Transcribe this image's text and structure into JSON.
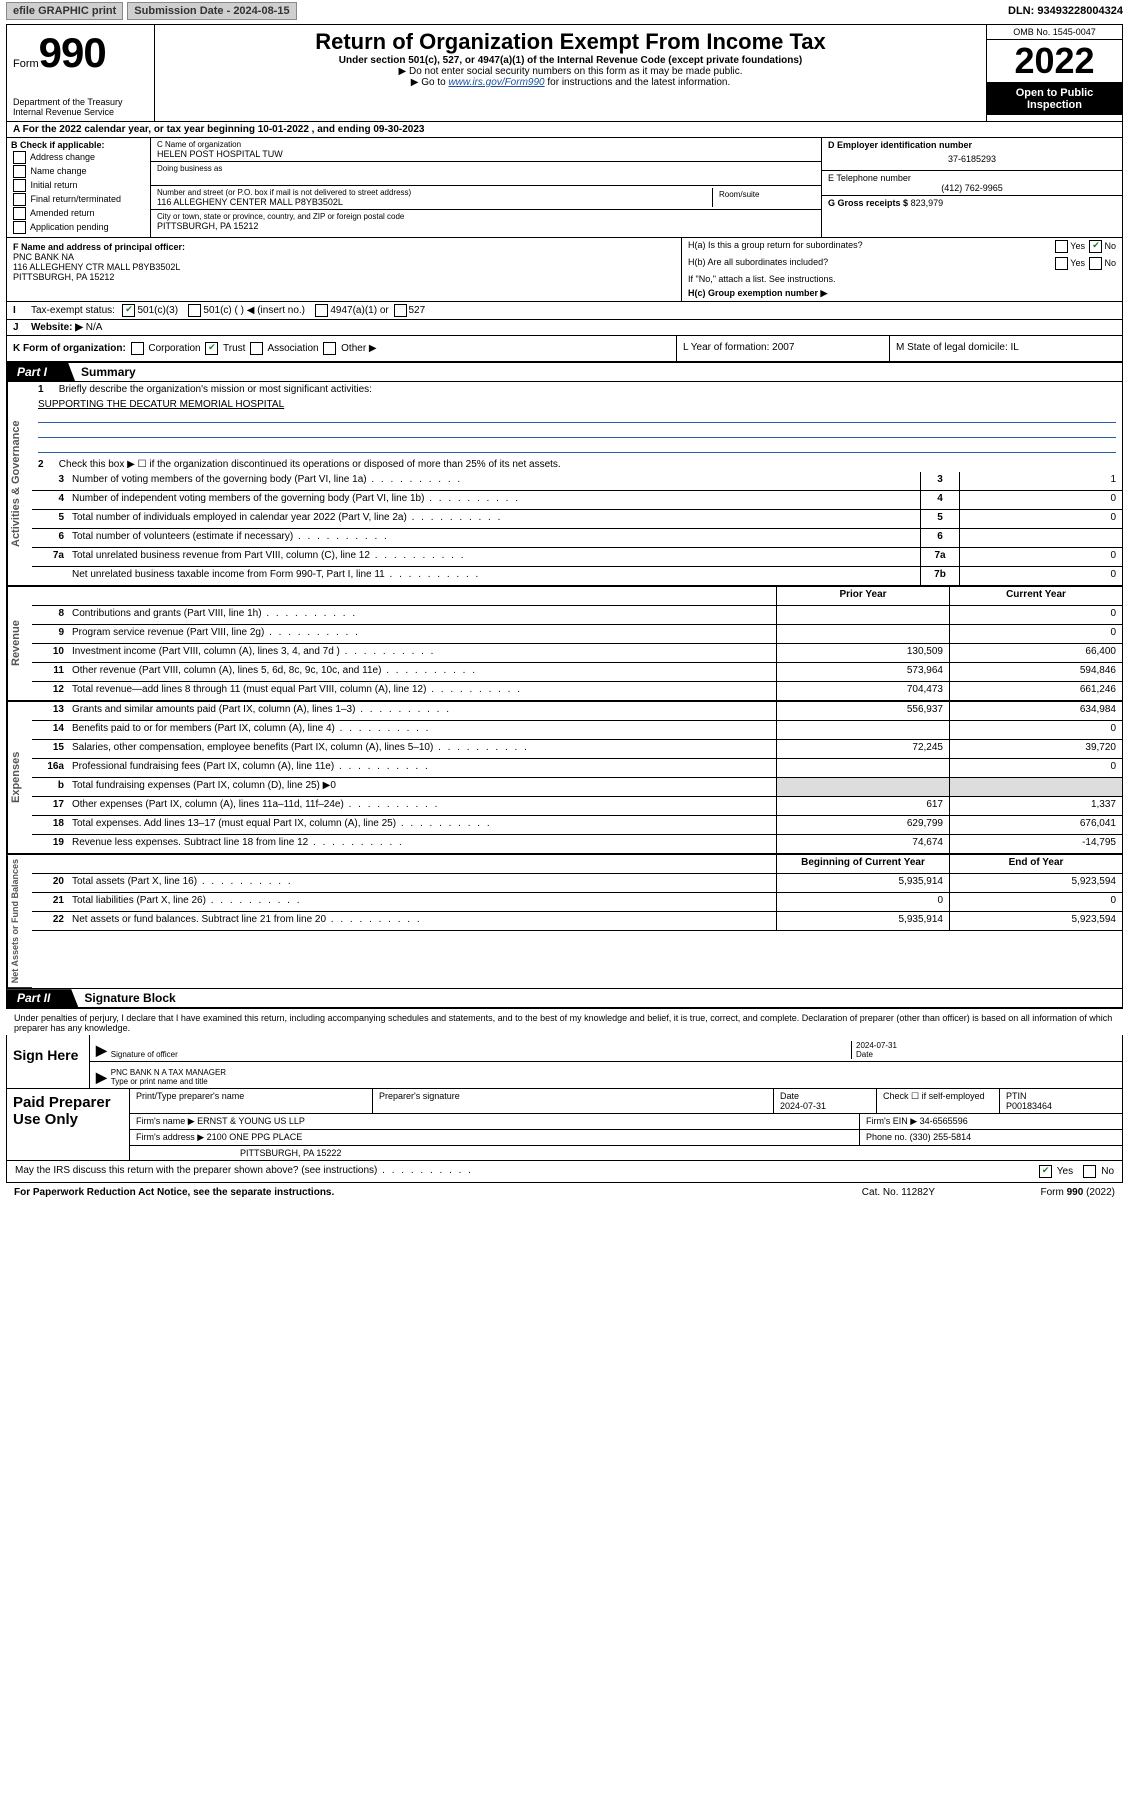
{
  "top": {
    "efile": "efile GRAPHIC print",
    "submission_label": "Submission Date - 2024-08-15",
    "dln": "DLN: 93493228004324"
  },
  "header": {
    "form_prefix": "Form",
    "form_number": "990",
    "title": "Return of Organization Exempt From Income Tax",
    "under": "Under section 501(c), 527, or 4947(a)(1) of the Internal Revenue Code (except private foundations)",
    "ssn": "▶ Do not enter social security numbers on this form as it may be made public.",
    "goto_pre": "▶ Go to ",
    "goto_link": "www.irs.gov/Form990",
    "goto_post": " for instructions and the latest information.",
    "dept": "Department of the Treasury",
    "irs": "Internal Revenue Service",
    "omb": "OMB No. 1545-0047",
    "year": "2022",
    "open": "Open to Public Inspection"
  },
  "rowA": "For the 2022 calendar year, or tax year beginning 10-01-2022    , and ending 09-30-2023",
  "B": {
    "label": "B Check if applicable:",
    "opts": [
      "Address change",
      "Name change",
      "Initial return",
      "Final return/terminated",
      "Amended return",
      "Application pending"
    ]
  },
  "C": {
    "name_lbl": "C Name of organization",
    "name_val": "HELEN POST HOSPITAL TUW",
    "dba_lbl": "Doing business as",
    "street_lbl": "Number and street (or P.O. box if mail is not delivered to street address)",
    "room_lbl": "Room/suite",
    "street_val": "116 ALLEGHENY CENTER MALL P8YB3502L",
    "city_lbl": "City or town, state or province, country, and ZIP or foreign postal code",
    "city_val": "PITTSBURGH, PA  15212"
  },
  "D": {
    "lbl": "D Employer identification number",
    "val": "37-6185293"
  },
  "E": {
    "lbl": "E Telephone number",
    "val": "(412) 762-9965"
  },
  "G": {
    "lbl": "G Gross receipts $",
    "val": "823,979"
  },
  "F": {
    "lbl": "F  Name and address of principal officer:",
    "l1": "PNC BANK NA",
    "l2": "116 ALLEGHENY CTR MALL P8YB3502L",
    "l3": "PITTSBURGH, PA  15212"
  },
  "H": {
    "ha": "H(a)  Is this a group return for subordinates?",
    "hb": "H(b)  Are all subordinates included?",
    "hb_note": "If \"No,\" attach a list. See instructions.",
    "hc": "H(c)  Group exemption number ▶"
  },
  "I": {
    "lbl": "Tax-exempt status:",
    "s1": "501(c)(3)",
    "s2": "501(c) (   ) ◀ (insert no.)",
    "s3": "4947(a)(1) or",
    "s4": "527"
  },
  "J": {
    "lbl": "Website: ▶",
    "val": "N/A"
  },
  "K": {
    "lbl": "K Form of organization:",
    "opts": [
      "Corporation",
      "Trust",
      "Association",
      "Other ▶"
    ],
    "L": "L Year of formation: 2007",
    "M": "M State of legal domicile: IL"
  },
  "part1": {
    "num": "Part I",
    "title": "Summary"
  },
  "gov": {
    "l1": "Briefly describe the organization's mission or most significant activities:",
    "mission": "SUPPORTING THE DECATUR MEMORIAL HOSPITAL",
    "l2": "Check this box ▶ ☐  if the organization discontinued its operations or disposed of more than 25% of its net assets.",
    "rows": [
      {
        "n": "3",
        "d": "Number of voting members of the governing body (Part VI, line 1a)",
        "box": "3",
        "v": "1"
      },
      {
        "n": "4",
        "d": "Number of independent voting members of the governing body (Part VI, line 1b)",
        "box": "4",
        "v": "0"
      },
      {
        "n": "5",
        "d": "Total number of individuals employed in calendar year 2022 (Part V, line 2a)",
        "box": "5",
        "v": "0"
      },
      {
        "n": "6",
        "d": "Total number of volunteers (estimate if necessary)",
        "box": "6",
        "v": ""
      },
      {
        "n": "7a",
        "d": "Total unrelated business revenue from Part VIII, column (C), line 12",
        "box": "7a",
        "v": "0"
      },
      {
        "n": "",
        "d": "Net unrelated business taxable income from Form 990-T, Part I, line 11",
        "box": "7b",
        "v": "0"
      }
    ]
  },
  "twoCol": {
    "hdr_prior": "Prior Year",
    "hdr_curr": "Current Year",
    "rev": [
      {
        "n": "8",
        "d": "Contributions and grants (Part VIII, line 1h)",
        "p": "",
        "c": "0"
      },
      {
        "n": "9",
        "d": "Program service revenue (Part VIII, line 2g)",
        "p": "",
        "c": "0"
      },
      {
        "n": "10",
        "d": "Investment income (Part VIII, column (A), lines 3, 4, and 7d )",
        "p": "130,509",
        "c": "66,400"
      },
      {
        "n": "11",
        "d": "Other revenue (Part VIII, column (A), lines 5, 6d, 8c, 9c, 10c, and 11e)",
        "p": "573,964",
        "c": "594,846"
      },
      {
        "n": "12",
        "d": "Total revenue—add lines 8 through 11 (must equal Part VIII, column (A), line 12)",
        "p": "704,473",
        "c": "661,246"
      }
    ],
    "exp": [
      {
        "n": "13",
        "d": "Grants and similar amounts paid (Part IX, column (A), lines 1–3)",
        "p": "556,937",
        "c": "634,984"
      },
      {
        "n": "14",
        "d": "Benefits paid to or for members (Part IX, column (A), line 4)",
        "p": "",
        "c": "0"
      },
      {
        "n": "15",
        "d": "Salaries, other compensation, employee benefits (Part IX, column (A), lines 5–10)",
        "p": "72,245",
        "c": "39,720"
      },
      {
        "n": "16a",
        "d": "Professional fundraising fees (Part IX, column (A), line 11e)",
        "p": "",
        "c": "0"
      },
      {
        "n": "b",
        "d": "Total fundraising expenses (Part IX, column (D), line 25) ▶0",
        "p": null,
        "c": null
      },
      {
        "n": "17",
        "d": "Other expenses (Part IX, column (A), lines 11a–11d, 11f–24e)",
        "p": "617",
        "c": "1,337"
      },
      {
        "n": "18",
        "d": "Total expenses. Add lines 13–17 (must equal Part IX, column (A), line 25)",
        "p": "629,799",
        "c": "676,041"
      },
      {
        "n": "19",
        "d": "Revenue less expenses. Subtract line 18 from line 12",
        "p": "74,674",
        "c": "-14,795"
      }
    ],
    "hdr_begin": "Beginning of Current Year",
    "hdr_end": "End of Year",
    "net": [
      {
        "n": "20",
        "d": "Total assets (Part X, line 16)",
        "p": "5,935,914",
        "c": "5,923,594"
      },
      {
        "n": "21",
        "d": "Total liabilities (Part X, line 26)",
        "p": "0",
        "c": "0"
      },
      {
        "n": "22",
        "d": "Net assets or fund balances. Subtract line 21 from line 20",
        "p": "5,935,914",
        "c": "5,923,594"
      }
    ]
  },
  "vlabels": {
    "gov": "Activities & Governance",
    "rev": "Revenue",
    "exp": "Expenses",
    "net": "Net Assets or Fund Balances"
  },
  "part2": {
    "num": "Part II",
    "title": "Signature Block"
  },
  "penalties": "Under penalties of perjury, I declare that I have examined this return, including accompanying schedules and statements, and to the best of my knowledge and belief, it is true, correct, and complete. Declaration of preparer (other than officer) is based on all information of which preparer has any knowledge.",
  "sign": {
    "here": "Sign Here",
    "sig_lbl": "Signature of officer",
    "date_lbl": "Date",
    "date_val": "2024-07-31",
    "name_val": "PNC BANK N A  TAX MANAGER",
    "name_lbl": "Type or print name and title"
  },
  "paid": {
    "title": "Paid Preparer Use Only",
    "h1": "Print/Type preparer's name",
    "h2": "Preparer's signature",
    "h3": "Date",
    "h3v": "2024-07-31",
    "h4": "Check ☐ if self-employed",
    "h5": "PTIN",
    "h5v": "P00183464",
    "firm_name_lbl": "Firm's name    ▶",
    "firm_name": "ERNST & YOUNG US LLP",
    "ein_lbl": "Firm's EIN ▶",
    "ein": "34-6565596",
    "addr_lbl": "Firm's address ▶",
    "addr1": "2100 ONE PPG PLACE",
    "addr2": "PITTSBURGH, PA  15222",
    "phone_lbl": "Phone no.",
    "phone": "(330) 255-5814"
  },
  "discuss": "May the IRS discuss this return with the preparer shown above? (see instructions)",
  "footer": {
    "left": "For Paperwork Reduction Act Notice, see the separate instructions.",
    "mid": "Cat. No. 11282Y",
    "right": "Form 990 (2022)"
  }
}
